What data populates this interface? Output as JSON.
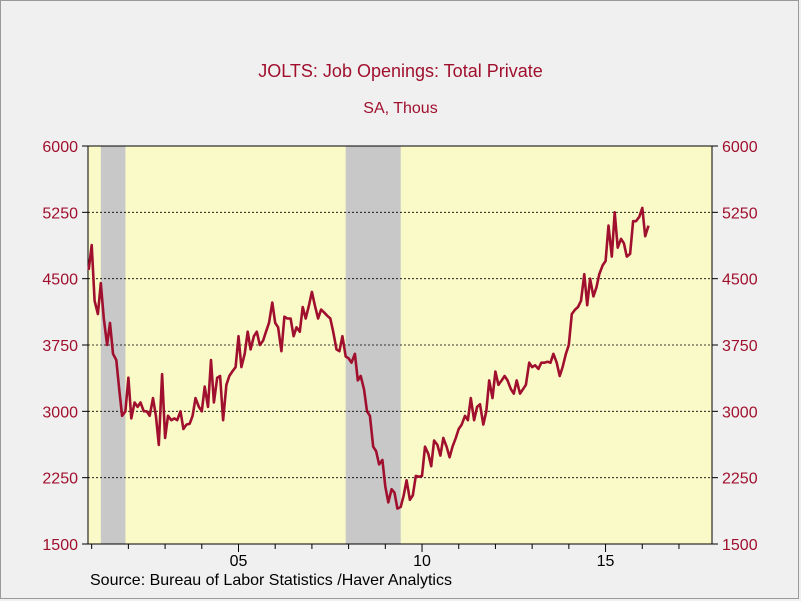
{
  "chart_data": {
    "type": "line",
    "title": "JOLTS: Job Openings: Total Private",
    "subtitle": "SA, Thous",
    "source": "Source:  Bureau of Labor Statistics /Haver Analytics",
    "ylim": [
      1500,
      6000
    ],
    "yticks": [
      1500,
      2250,
      3000,
      3750,
      4500,
      5250,
      6000
    ],
    "xlim": [
      2000.9,
      2017.9
    ],
    "xtick_labels": [
      {
        "label": "05",
        "x": 2005.0
      },
      {
        "label": "10",
        "x": 2010.0
      },
      {
        "label": "15",
        "x": 2015.0
      }
    ],
    "grid": "horizontal dashed",
    "recessions": [
      [
        2001.25,
        2001.92
      ],
      [
        2007.92,
        2009.42
      ]
    ],
    "series": [
      {
        "color": "#a0102e",
        "points": [
          [
            2000.92,
            4600
          ],
          [
            2001.0,
            4880
          ],
          [
            2001.08,
            4250
          ],
          [
            2001.17,
            4100
          ],
          [
            2001.25,
            4450
          ],
          [
            2001.33,
            4050
          ],
          [
            2001.42,
            3750
          ],
          [
            2001.5,
            4000
          ],
          [
            2001.58,
            3650
          ],
          [
            2001.67,
            3580
          ],
          [
            2001.75,
            3250
          ],
          [
            2001.83,
            2950
          ],
          [
            2001.92,
            3000
          ],
          [
            2002.0,
            3380
          ],
          [
            2002.08,
            2920
          ],
          [
            2002.17,
            3100
          ],
          [
            2002.25,
            3050
          ],
          [
            2002.33,
            3100
          ],
          [
            2002.42,
            3000
          ],
          [
            2002.5,
            3000
          ],
          [
            2002.58,
            2950
          ],
          [
            2002.67,
            3150
          ],
          [
            2002.75,
            2950
          ],
          [
            2002.83,
            2620
          ],
          [
            2002.92,
            3420
          ],
          [
            2003.0,
            2700
          ],
          [
            2003.08,
            2950
          ],
          [
            2003.17,
            2900
          ],
          [
            2003.25,
            2920
          ],
          [
            2003.33,
            2900
          ],
          [
            2003.42,
            3000
          ],
          [
            2003.5,
            2800
          ],
          [
            2003.58,
            2850
          ],
          [
            2003.67,
            2860
          ],
          [
            2003.75,
            2950
          ],
          [
            2003.83,
            3150
          ],
          [
            2003.92,
            3050
          ],
          [
            2004.0,
            3000
          ],
          [
            2004.08,
            3280
          ],
          [
            2004.17,
            3050
          ],
          [
            2004.25,
            3580
          ],
          [
            2004.33,
            3100
          ],
          [
            2004.42,
            3380
          ],
          [
            2004.5,
            3400
          ],
          [
            2004.58,
            2900
          ],
          [
            2004.67,
            3300
          ],
          [
            2004.75,
            3400
          ],
          [
            2004.83,
            3450
          ],
          [
            2004.92,
            3500
          ],
          [
            2005.0,
            3850
          ],
          [
            2005.08,
            3500
          ],
          [
            2005.17,
            3650
          ],
          [
            2005.25,
            3900
          ],
          [
            2005.33,
            3700
          ],
          [
            2005.42,
            3850
          ],
          [
            2005.5,
            3900
          ],
          [
            2005.58,
            3750
          ],
          [
            2005.67,
            3800
          ],
          [
            2005.75,
            3900
          ],
          [
            2005.83,
            4000
          ],
          [
            2005.92,
            4230
          ],
          [
            2006.0,
            4000
          ],
          [
            2006.08,
            3950
          ],
          [
            2006.17,
            3680
          ],
          [
            2006.25,
            4070
          ],
          [
            2006.33,
            4050
          ],
          [
            2006.42,
            4050
          ],
          [
            2006.5,
            3850
          ],
          [
            2006.58,
            3950
          ],
          [
            2006.67,
            3900
          ],
          [
            2006.75,
            4180
          ],
          [
            2006.83,
            4050
          ],
          [
            2006.92,
            4200
          ],
          [
            2007.0,
            4350
          ],
          [
            2007.08,
            4200
          ],
          [
            2007.17,
            4050
          ],
          [
            2007.25,
            4150
          ],
          [
            2007.33,
            4120
          ],
          [
            2007.42,
            4080
          ],
          [
            2007.5,
            4050
          ],
          [
            2007.58,
            3900
          ],
          [
            2007.67,
            3700
          ],
          [
            2007.75,
            3680
          ],
          [
            2007.83,
            3850
          ],
          [
            2007.92,
            3620
          ],
          [
            2008.0,
            3600
          ],
          [
            2008.08,
            3550
          ],
          [
            2008.17,
            3650
          ],
          [
            2008.25,
            3350
          ],
          [
            2008.33,
            3400
          ],
          [
            2008.42,
            3250
          ],
          [
            2008.5,
            3000
          ],
          [
            2008.58,
            2950
          ],
          [
            2008.67,
            2600
          ],
          [
            2008.75,
            2550
          ],
          [
            2008.83,
            2400
          ],
          [
            2008.92,
            2450
          ],
          [
            2009.0,
            2150
          ],
          [
            2009.08,
            1970
          ],
          [
            2009.17,
            2120
          ],
          [
            2009.25,
            2080
          ],
          [
            2009.33,
            1900
          ],
          [
            2009.42,
            1920
          ],
          [
            2009.5,
            2050
          ],
          [
            2009.58,
            2220
          ],
          [
            2009.67,
            2000
          ],
          [
            2009.75,
            2050
          ],
          [
            2009.83,
            2270
          ],
          [
            2009.92,
            2260
          ],
          [
            2010.0,
            2270
          ],
          [
            2010.08,
            2600
          ],
          [
            2010.17,
            2520
          ],
          [
            2010.25,
            2380
          ],
          [
            2010.33,
            2670
          ],
          [
            2010.42,
            2620
          ],
          [
            2010.5,
            2500
          ],
          [
            2010.58,
            2700
          ],
          [
            2010.67,
            2600
          ],
          [
            2010.75,
            2480
          ],
          [
            2010.83,
            2600
          ],
          [
            2010.92,
            2700
          ],
          [
            2011.0,
            2800
          ],
          [
            2011.08,
            2850
          ],
          [
            2011.17,
            2950
          ],
          [
            2011.25,
            2900
          ],
          [
            2011.33,
            3150
          ],
          [
            2011.42,
            2900
          ],
          [
            2011.5,
            3050
          ],
          [
            2011.58,
            3080
          ],
          [
            2011.67,
            2850
          ],
          [
            2011.75,
            3000
          ],
          [
            2011.83,
            3350
          ],
          [
            2011.92,
            3150
          ],
          [
            2012.0,
            3450
          ],
          [
            2012.08,
            3300
          ],
          [
            2012.17,
            3350
          ],
          [
            2012.25,
            3400
          ],
          [
            2012.33,
            3350
          ],
          [
            2012.42,
            3250
          ],
          [
            2012.5,
            3200
          ],
          [
            2012.58,
            3350
          ],
          [
            2012.67,
            3200
          ],
          [
            2012.75,
            3250
          ],
          [
            2012.83,
            3300
          ],
          [
            2012.92,
            3550
          ],
          [
            2013.0,
            3500
          ],
          [
            2013.08,
            3520
          ],
          [
            2013.17,
            3480
          ],
          [
            2013.25,
            3550
          ],
          [
            2013.33,
            3550
          ],
          [
            2013.42,
            3560
          ],
          [
            2013.5,
            3550
          ],
          [
            2013.58,
            3650
          ],
          [
            2013.67,
            3550
          ],
          [
            2013.75,
            3400
          ],
          [
            2013.83,
            3500
          ],
          [
            2013.92,
            3650
          ],
          [
            2014.0,
            3750
          ],
          [
            2014.08,
            4100
          ],
          [
            2014.17,
            4150
          ],
          [
            2014.25,
            4180
          ],
          [
            2014.33,
            4250
          ],
          [
            2014.42,
            4550
          ],
          [
            2014.5,
            4200
          ],
          [
            2014.58,
            4500
          ],
          [
            2014.67,
            4300
          ],
          [
            2014.75,
            4400
          ],
          [
            2014.83,
            4550
          ],
          [
            2014.92,
            4650
          ],
          [
            2015.0,
            4700
          ],
          [
            2015.08,
            5100
          ],
          [
            2015.17,
            4750
          ],
          [
            2015.25,
            5250
          ],
          [
            2015.33,
            4850
          ],
          [
            2015.42,
            4950
          ],
          [
            2015.5,
            4900
          ],
          [
            2015.58,
            4750
          ],
          [
            2015.67,
            4780
          ],
          [
            2015.75,
            5150
          ],
          [
            2015.83,
            5150
          ],
          [
            2015.92,
            5200
          ],
          [
            2016.0,
            5300
          ],
          [
            2016.08,
            4980
          ],
          [
            2016.17,
            5100
          ]
        ]
      }
    ]
  }
}
